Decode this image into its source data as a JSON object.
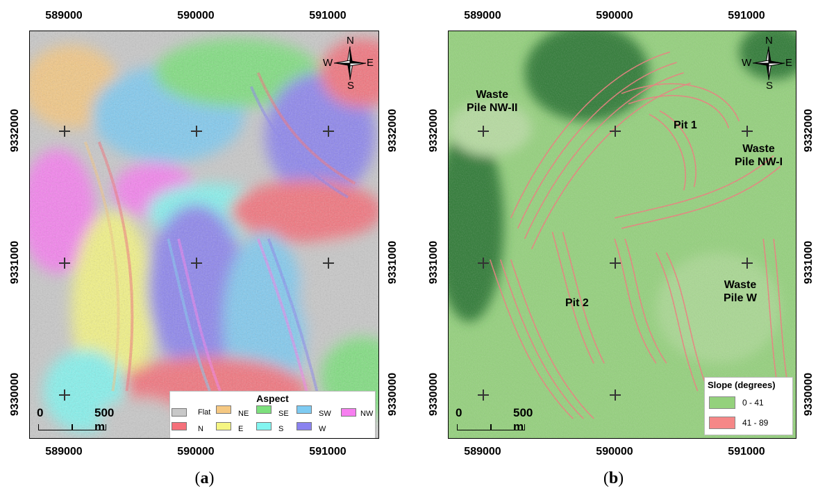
{
  "panels": [
    {
      "caption_open": "(",
      "caption_letter": "a",
      "caption_close": ")",
      "x_ticks": [
        "589000",
        "590000",
        "591000"
      ],
      "y_ticks": [
        "9332000",
        "9331000",
        "9330000"
      ],
      "compass": {
        "n": "N",
        "s": "S",
        "e": "E",
        "w": "W"
      },
      "scale": {
        "start": "0",
        "end": "500 m"
      },
      "legend": {
        "title": "Aspect",
        "items": [
          {
            "label": "Flat",
            "color": "#c8c8c8"
          },
          {
            "label": "NE",
            "color": "#f5c882"
          },
          {
            "label": "SE",
            "color": "#7de07d"
          },
          {
            "label": "SW",
            "color": "#7ecbf2"
          },
          {
            "label": "NW",
            "color": "#f77ff0"
          },
          {
            "label": "N",
            "color": "#f5707a"
          },
          {
            "label": "E",
            "color": "#f5f582"
          },
          {
            "label": "S",
            "color": "#82f5f0"
          },
          {
            "label": "W",
            "color": "#8a82f0"
          }
        ]
      }
    },
    {
      "caption_open": "(",
      "caption_letter": "b",
      "caption_close": ")",
      "x_ticks": [
        "589000",
        "590000",
        "591000"
      ],
      "y_ticks": [
        "9332000",
        "9331000",
        "9330000"
      ],
      "compass": {
        "n": "N",
        "s": "S",
        "e": "E",
        "w": "W"
      },
      "scale": {
        "start": "0",
        "end": "500 m"
      },
      "legend": {
        "title": "Slope (degrees)",
        "items": [
          {
            "label": "0 - 41",
            "color": "#94d17c"
          },
          {
            "label": "41 - 89",
            "color": "#f58787"
          }
        ]
      },
      "area_labels": {
        "waste_nw2": [
          "Waste",
          "Pile NW-II"
        ],
        "pit1": "Pit 1",
        "waste_nw1": [
          "Waste",
          "Pile NW-I"
        ],
        "pit2": "Pit 2",
        "waste_w": [
          "Waste",
          "Pile W"
        ]
      }
    }
  ]
}
